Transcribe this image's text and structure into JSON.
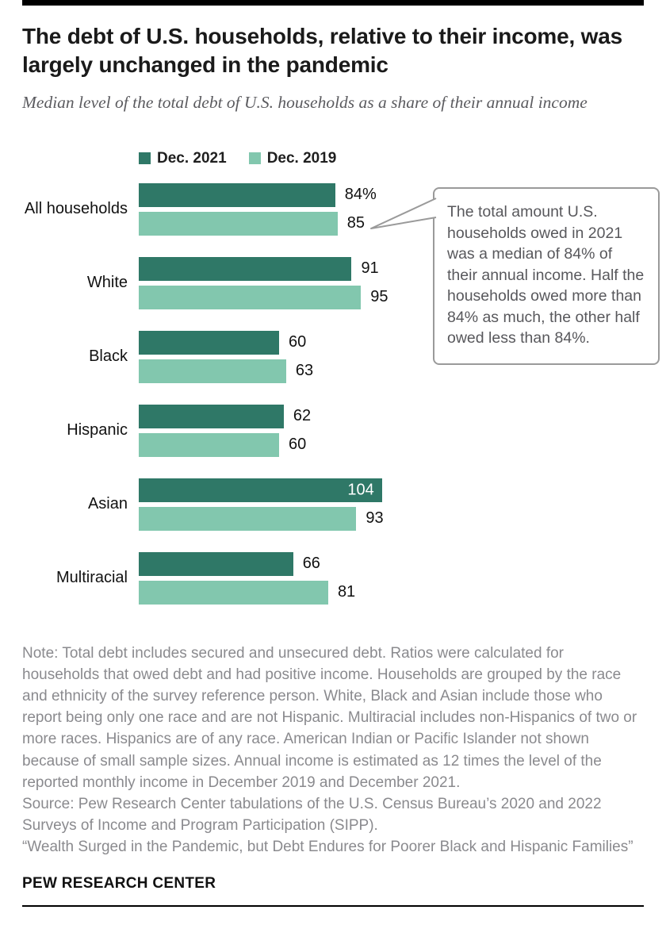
{
  "header": {
    "title": "The debt of U.S. households, relative to their income, was largely unchanged in the pandemic",
    "subtitle": "Median level of the total debt of U.S. households as a share of their annual income"
  },
  "legend": [
    {
      "label": "Dec. 2021",
      "color": "#2f7867"
    },
    {
      "label": "Dec. 2019",
      "color": "#82c7ae"
    }
  ],
  "chart_data": {
    "type": "bar",
    "orientation": "horizontal",
    "title": "Median level of the total debt of U.S. households as a share of their annual income",
    "categories": [
      "All households",
      "White",
      "Black",
      "Hispanic",
      "Asian",
      "Multiracial"
    ],
    "series": [
      {
        "name": "Dec. 2021",
        "color": "#2f7867",
        "values": [
          84,
          91,
          60,
          62,
          104,
          66
        ],
        "labels": [
          "84%",
          "91",
          "60",
          "62",
          "104",
          "66"
        ],
        "label_inside": [
          false,
          false,
          false,
          false,
          true,
          false
        ]
      },
      {
        "name": "Dec. 2019",
        "color": "#82c7ae",
        "values": [
          85,
          95,
          63,
          60,
          93,
          81
        ],
        "labels": [
          "85",
          "95",
          "63",
          "60",
          "93",
          "81"
        ],
        "label_inside": [
          false,
          false,
          false,
          false,
          false,
          false
        ]
      }
    ],
    "xlim": [
      0,
      110
    ],
    "grid": false,
    "legend_position": "top"
  },
  "callout": {
    "text": "The total amount U.S. households owed in 2021 was a median of 84% of their annual income. Half the households owed more than 84% as much, the other half owed less than 84%."
  },
  "footer": {
    "note": "Note: Total debt includes secured and unsecured debt. Ratios were calculated for households that owed debt and had positive income. Households are grouped by the race and ethnicity of the survey reference person. White, Black and Asian include those who report being only one race and are not Hispanic. Multiracial includes non-Hispanics of two or more races. Hispanics are of any race. American Indian or Pacific Islander not shown because of small sample sizes. Annual income is estimated as 12 times the level of the reported monthly income in December 2019 and December 2021.",
    "source": "Source: Pew Research Center tabulations of the U.S. Census Bureau’s 2020 and 2022 Surveys of Income and Program Participation (SIPP).",
    "report": "“Wealth Surged in the Pandemic, but Debt Endures for Poorer Black and Hispanic Families”",
    "brand": "PEW RESEARCH CENTER"
  }
}
